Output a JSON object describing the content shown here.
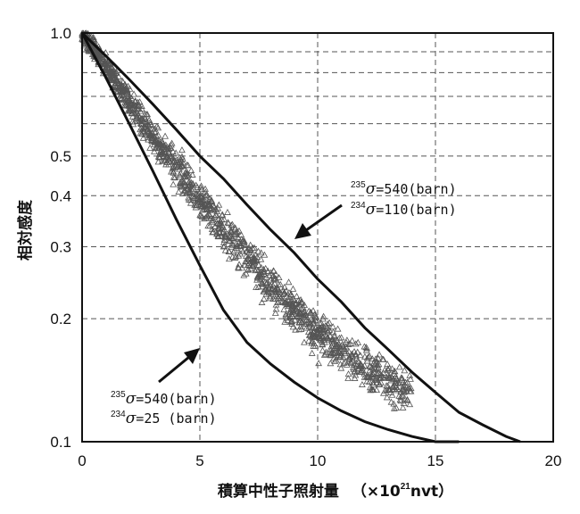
{
  "chart_data": {
    "type": "scatter",
    "title": "",
    "xlabel": "積算中性子照射量",
    "xlabel_unit_prefix": "（×10",
    "xlabel_unit_exp": "21",
    "xlabel_unit_suffix": "nvt）",
    "ylabel": "相対感度",
    "xlim": [
      0,
      20
    ],
    "ylim": [
      0.1,
      1.0
    ],
    "yscale": "log",
    "grid": true,
    "x_ticks": [
      0,
      5,
      10,
      15,
      20
    ],
    "x_tick_labels": [
      "0",
      "5",
      "10",
      "15",
      "20"
    ],
    "y_ticks": [
      0.1,
      0.2,
      0.3,
      0.4,
      0.5,
      1.0
    ],
    "y_tick_labels": [
      "0.1",
      "0.2",
      "0.3",
      "0.4",
      "0.5",
      "1.0"
    ],
    "marker": "triangle-open",
    "marker_color": "#555555",
    "line_color": "#111111",
    "series": [
      {
        "kind": "scatter",
        "envelope": [
          [
            0,
            1.0
          ],
          [
            0.5,
            0.92
          ],
          [
            1,
            0.83
          ],
          [
            2,
            0.68
          ],
          [
            3,
            0.56
          ],
          [
            4,
            0.47
          ],
          [
            5,
            0.39
          ],
          [
            6,
            0.33
          ],
          [
            7,
            0.28
          ],
          [
            8,
            0.24
          ],
          [
            9,
            0.21
          ],
          [
            10,
            0.185
          ],
          [
            11,
            0.165
          ],
          [
            12,
            0.15
          ],
          [
            13,
            0.14
          ],
          [
            14,
            0.132
          ]
        ]
      },
      {
        "kind": "line",
        "points": [
          [
            0,
            1.0
          ],
          [
            1,
            0.88
          ],
          [
            2,
            0.77
          ],
          [
            3,
            0.67
          ],
          [
            4,
            0.58
          ],
          [
            5,
            0.5
          ],
          [
            6,
            0.44
          ],
          [
            7,
            0.38
          ],
          [
            8,
            0.33
          ],
          [
            9,
            0.29
          ],
          [
            10,
            0.25
          ],
          [
            11,
            0.22
          ],
          [
            12,
            0.19
          ],
          [
            13,
            0.168
          ],
          [
            14,
            0.148
          ],
          [
            15,
            0.132
          ],
          [
            16,
            0.118
          ],
          [
            17,
            0.11
          ],
          [
            18,
            0.103
          ],
          [
            18.6,
            0.1
          ]
        ]
      },
      {
        "kind": "line",
        "points": [
          [
            0,
            1.0
          ],
          [
            1,
            0.78
          ],
          [
            2,
            0.6
          ],
          [
            3,
            0.46
          ],
          [
            4,
            0.35
          ],
          [
            5,
            0.27
          ],
          [
            6,
            0.21
          ],
          [
            7,
            0.175
          ],
          [
            8,
            0.155
          ],
          [
            9,
            0.14
          ],
          [
            10,
            0.128
          ],
          [
            11,
            0.119
          ],
          [
            12,
            0.112
          ],
          [
            13,
            0.107
          ],
          [
            14,
            0.103
          ],
          [
            15,
            0.1
          ],
          [
            16,
            0.1
          ]
        ]
      }
    ],
    "annotations": [
      {
        "line1_sup": "235",
        "line1_sym": "σ",
        "line1_text": "=540(barn)",
        "line2_sup": "234",
        "line2_sym": "σ",
        "line2_text": "=110(barn)",
        "arrow_to": [
          8.8,
          0.32
        ]
      },
      {
        "line1_sup": "235",
        "line1_sym": "σ",
        "line1_text": "=540(barn)",
        "line2_sup": "234",
        "line2_sym": "σ",
        "line2_text": "=25 (barn)",
        "arrow_to": [
          4.8,
          0.17
        ]
      }
    ]
  }
}
